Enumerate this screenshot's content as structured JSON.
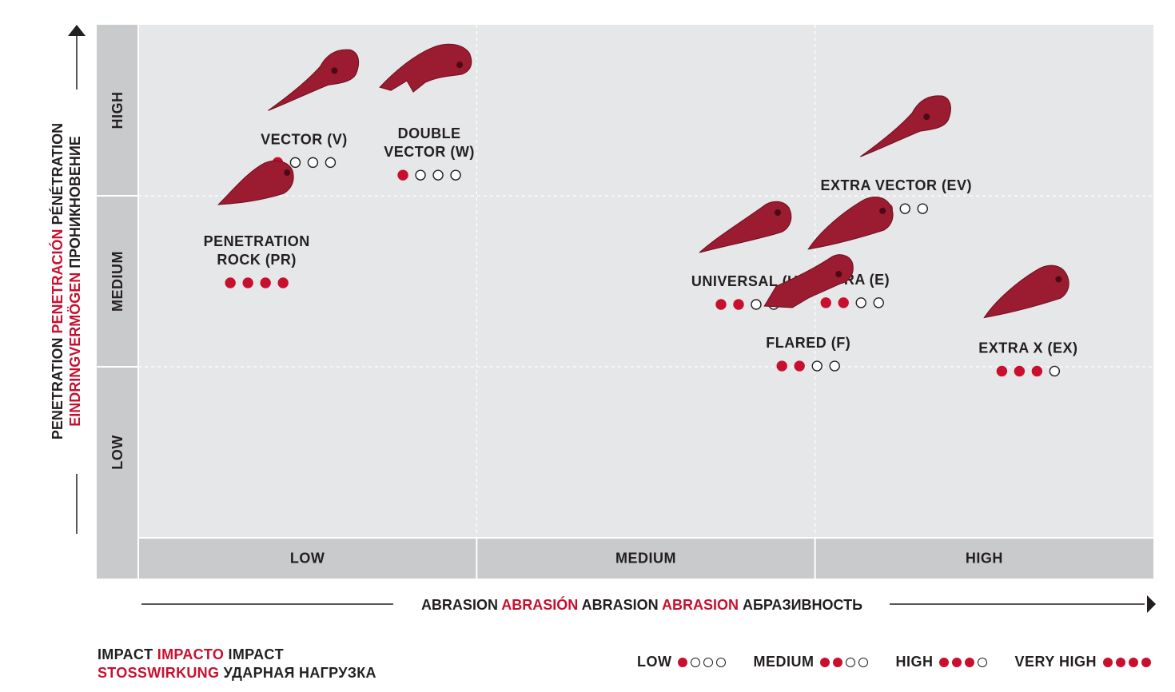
{
  "chart_data": {
    "type": "scatter",
    "x_axis": {
      "categories": [
        "LOW",
        "MEDIUM",
        "HIGH"
      ],
      "label_parts": [
        {
          "text": "ABRASION ",
          "red": false
        },
        {
          "text": "ABRASIÓN ",
          "red": true
        },
        {
          "text": "ABRASION ",
          "red": false
        },
        {
          "text": "ABRASION ",
          "red": true
        },
        {
          "text": "АБРАЗИВНОСТЬ",
          "red": false
        }
      ],
      "range": [
        0,
        3
      ]
    },
    "y_axis": {
      "categories": [
        "LOW",
        "MEDIUM",
        "HIGH"
      ],
      "label_line1": [
        {
          "text": "PENETRATION ",
          "red": false
        },
        {
          "text": "PENETRACIÓN ",
          "red": true
        },
        {
          "text": "PÉNÉTRATION",
          "red": false
        }
      ],
      "label_line2": [
        {
          "text": "EINDRINGVERMÖGEN ",
          "red": true
        },
        {
          "text": "ПРОНИКНОВЕНИЕ",
          "red": false
        }
      ],
      "range": [
        0,
        3
      ]
    },
    "grid": true,
    "points": [
      {
        "name": "VECTOR (V)",
        "lines": [
          "VECTOR (V)"
        ],
        "x": 0.49,
        "y": 2.33,
        "impact": 1,
        "shape": "narrow"
      },
      {
        "name": "DOUBLE VECTOR (W)",
        "lines": [
          "DOUBLE",
          "VECTOR (W)"
        ],
        "x": 0.86,
        "y": 2.31,
        "impact": 1,
        "shape": "double"
      },
      {
        "name": "PENETRATION ROCK (PR)",
        "lines": [
          "PENETRATION",
          "ROCK (PR)"
        ],
        "x": 0.35,
        "y": 1.68,
        "impact": 4,
        "shape": "rock"
      },
      {
        "name": "EXTRA VECTOR (EV)",
        "lines": [
          "EXTRA VECTOR (EV)"
        ],
        "x": 2.24,
        "y": 2.06,
        "impact": 2,
        "shape": "narrow"
      },
      {
        "name": "UNIVERSAL (U)",
        "lines": [
          "UNIVERSAL (U)"
        ],
        "x": 1.8,
        "y": 1.5,
        "impact": 2,
        "shape": "universal"
      },
      {
        "name": "EXTRA (E)",
        "lines": [
          "EXTRA (E)"
        ],
        "x": 2.11,
        "y": 1.51,
        "impact": 2,
        "shape": "extra"
      },
      {
        "name": "FLARED (F)",
        "lines": [
          "FLARED (F)"
        ],
        "x": 1.98,
        "y": 1.14,
        "impact": 2,
        "shape": "flared"
      },
      {
        "name": "EXTRA X (EX)",
        "lines": [
          "EXTRA X (EX)"
        ],
        "x": 2.63,
        "y": 1.11,
        "impact": 3,
        "shape": "extra"
      }
    ],
    "impact_scale": 4
  },
  "footer": {
    "impact_line1": [
      {
        "text": "IMPACT ",
        "red": false
      },
      {
        "text": "IMPACTO ",
        "red": true
      },
      {
        "text": "IMPACT",
        "red": false
      }
    ],
    "impact_line2": [
      {
        "text": "STOSSWIRKUNG ",
        "red": true
      },
      {
        "text": "УДАРНАЯ НАГРУЗКА",
        "red": false
      }
    ],
    "legend": [
      {
        "label": "LOW",
        "filled": 1
      },
      {
        "label": "MEDIUM",
        "filled": 2
      },
      {
        "label": "HIGH",
        "filled": 3
      },
      {
        "label": "VERY HIGH",
        "filled": 4
      }
    ]
  },
  "colors": {
    "accent": "#c8102e",
    "tooth": "#9b1b30",
    "plot_bg": "#e6e7e8",
    "axis_band": "#c9cacc",
    "text": "#231f20"
  }
}
